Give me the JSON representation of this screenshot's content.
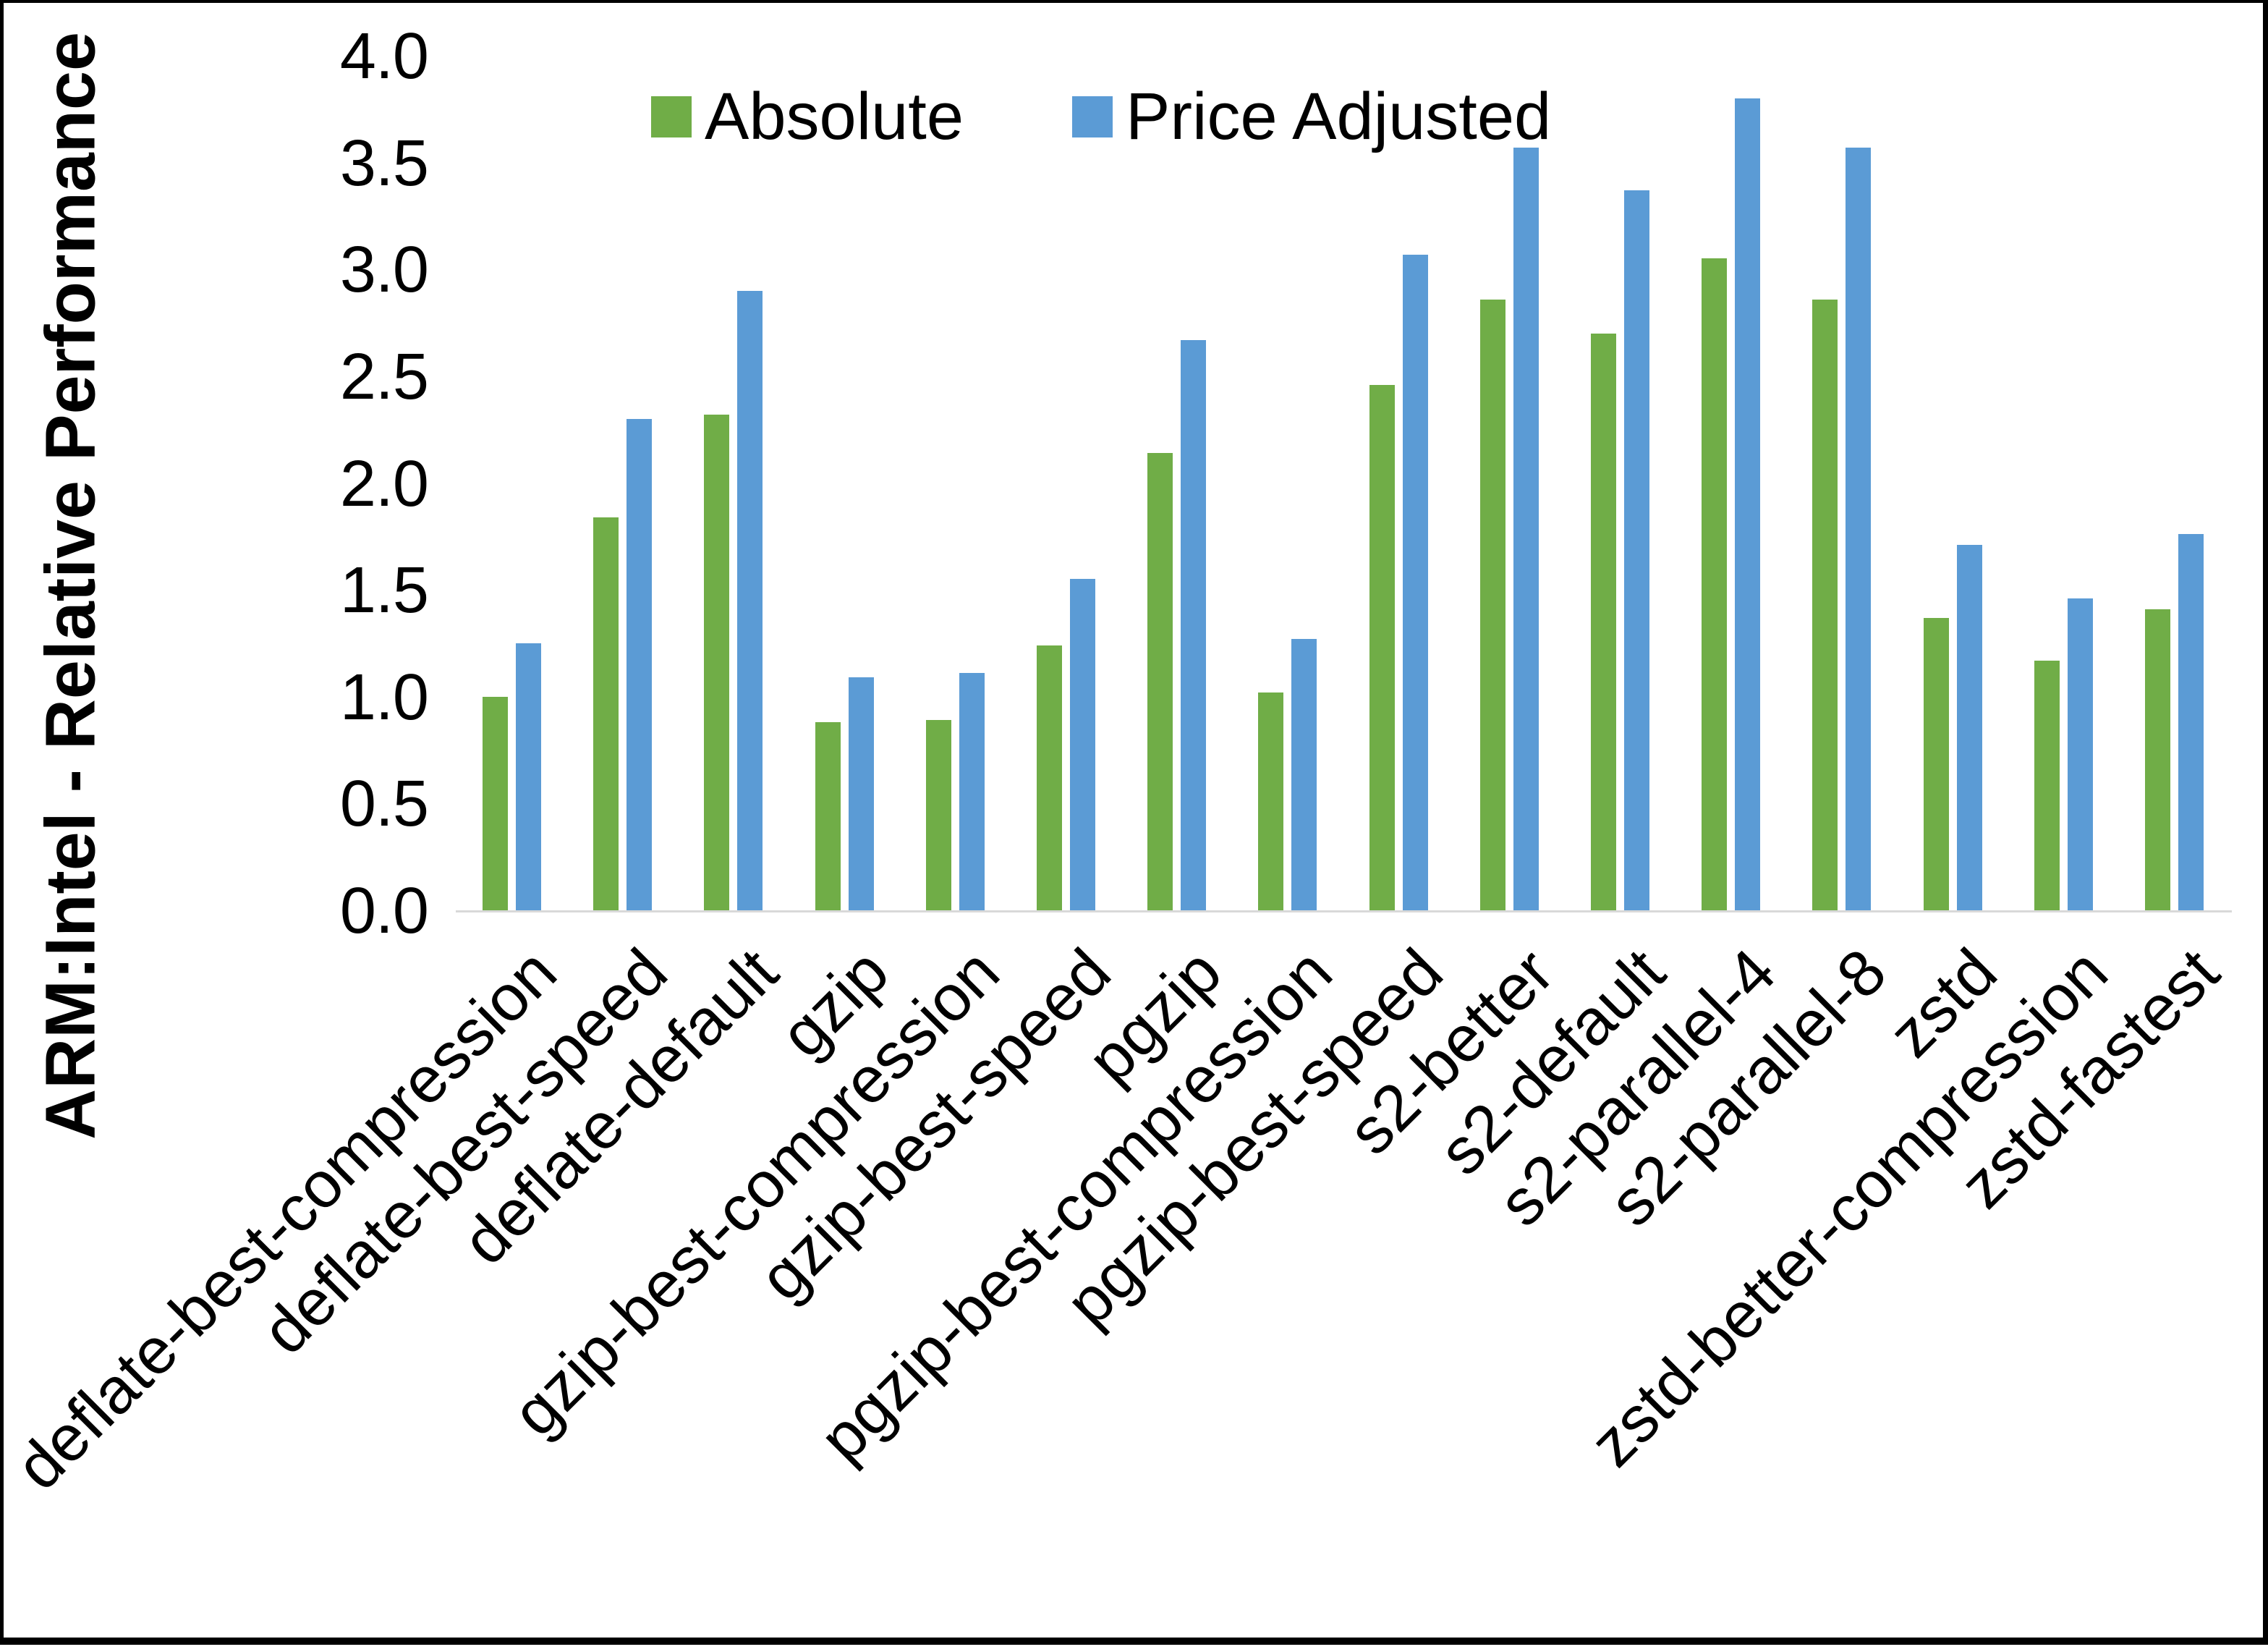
{
  "chart_data": {
    "type": "bar",
    "title": "",
    "xlabel": "",
    "ylabel": "ARM:Intel - Relative Performance",
    "ylim": [
      0,
      4.0
    ],
    "ytick_step": 0.5,
    "ytick_decimals": 1,
    "grid": false,
    "legend_position": "top-center",
    "categories": [
      "deflate-best-compression",
      "deflate-best-speed",
      "deflate-default",
      "gzip",
      "gzip-best-compression",
      "gzip-best-speed",
      "pgzip",
      "pgzip-best-compression",
      "pgzip-best-speed",
      "s2-better",
      "s2-default",
      "s2-parallel-4",
      "s2-parallel-8",
      "zstd",
      "zstd-better-compression",
      "zstd-fastest"
    ],
    "series": [
      {
        "name": "Absolute",
        "color": "#70AD47",
        "values": [
          1.0,
          1.84,
          2.32,
          0.88,
          0.89,
          1.24,
          2.14,
          1.02,
          2.46,
          2.86,
          2.7,
          3.05,
          2.86,
          1.37,
          1.17,
          1.41
        ]
      },
      {
        "name": "Price Adjusted",
        "color": "#5B9BD5",
        "values": [
          1.25,
          2.3,
          2.9,
          1.09,
          1.11,
          1.55,
          2.67,
          1.27,
          3.07,
          3.57,
          3.37,
          3.8,
          3.57,
          1.71,
          1.46,
          1.76
        ]
      }
    ]
  },
  "colors": {
    "background": "#FFFFFF",
    "border": "#000000",
    "axis_line": "#D9D9D9",
    "text": "#000000"
  }
}
